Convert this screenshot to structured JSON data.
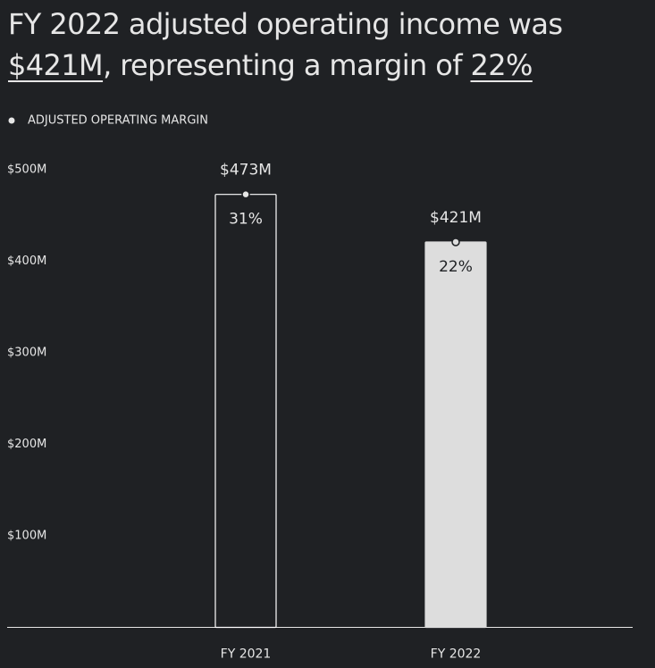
{
  "chart_data": {
    "type": "bar",
    "title_parts": [
      {
        "text": "FY 2022 adjusted operating income was "
      },
      {
        "text": "$421M",
        "underline": true
      },
      {
        "text": ", representing a margin of "
      },
      {
        "text": "22%",
        "underline": true
      }
    ],
    "categories": [
      "FY 2021",
      "FY 2022"
    ],
    "values": [
      473,
      421
    ],
    "value_labels": [
      "$473M",
      "$421M"
    ],
    "bar_fills": [
      "#1f2124",
      "#dddddd"
    ],
    "bar_strokes": [
      "#ffffff",
      "#dddddd"
    ],
    "margin": {
      "name": "ADJUSTED OPERATING MARGIN",
      "values": [
        31,
        22
      ],
      "value_labels": [
        "31%",
        "22%"
      ]
    },
    "ylim": [
      0,
      500
    ],
    "yticks": [
      {
        "value": 100,
        "label": "$100M"
      },
      {
        "value": 200,
        "label": "$200M"
      },
      {
        "value": 300,
        "label": "$300M"
      },
      {
        "value": 400,
        "label": "$400M"
      },
      {
        "value": 500,
        "label": "$500M"
      }
    ]
  }
}
